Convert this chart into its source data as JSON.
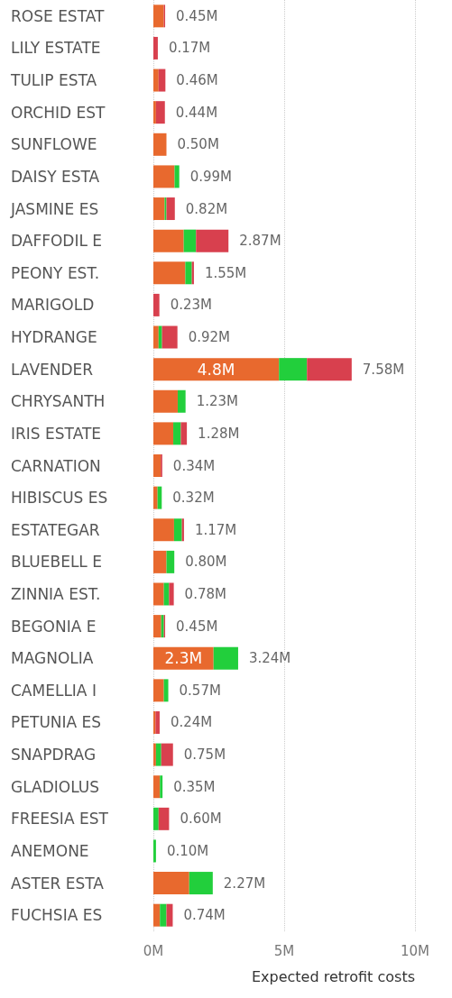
{
  "chart_data": {
    "type": "bar",
    "orientation": "horizontal",
    "stacked": true,
    "xlabel": "Expected retrofit costs",
    "categories": [
      "ROSE ESTAT",
      "LILY ESTATE",
      "TULIP ESTA",
      "ORCHID EST",
      "SUNFLOWE",
      "DAISY ESTA",
      "JASMINE ES",
      "DAFFODIL E",
      "PEONY EST.",
      "MARIGOLD",
      "HYDRANGE",
      "LAVENDER",
      "CHRYSANTH",
      "IRIS ESTATE",
      "CARNATION",
      "HIBISCUS ES",
      "ESTATEGAR",
      "BLUEBELL E",
      "ZINNIA EST.",
      "BEGONIA E",
      "MAGNOLIA",
      "CAMELLIA I",
      "PETUNIA ES",
      "SNAPDRAG",
      "GLADIOLUS",
      "FREESIA EST",
      "ANEMONE",
      "ASTER ESTA",
      "FUCHSIA ES"
    ],
    "series": [
      {
        "color": "#e8692e",
        "values": [
          0.4,
          null,
          0.2,
          0.1,
          0.5,
          0.81,
          0.43,
          1.16,
          1.22,
          null,
          0.2,
          4.8,
          0.93,
          0.76,
          0.28,
          0.16,
          0.79,
          0.5,
          0.4,
          0.3,
          2.3,
          0.4,
          0.08,
          0.1,
          0.25,
          null,
          null,
          1.37,
          0.25
        ],
        "value_labels": [
          null,
          null,
          null,
          null,
          null,
          null,
          null,
          null,
          null,
          null,
          null,
          "4.8M",
          null,
          null,
          null,
          null,
          null,
          null,
          null,
          null,
          "2.3M",
          null,
          null,
          null,
          null,
          null,
          null,
          null,
          null
        ]
      },
      {
        "color": "#22cf3c",
        "values": [
          null,
          null,
          null,
          null,
          null,
          0.18,
          0.07,
          0.47,
          0.25,
          null,
          0.13,
          1.07,
          0.3,
          0.29,
          null,
          0.16,
          0.3,
          0.3,
          0.2,
          0.1,
          0.94,
          0.17,
          null,
          0.2,
          0.1,
          0.2,
          0.1,
          0.9,
          0.25
        ]
      },
      {
        "color": "#d8404e",
        "values": [
          0.05,
          0.17,
          0.26,
          0.34,
          null,
          null,
          0.32,
          1.24,
          0.08,
          0.23,
          0.59,
          1.71,
          null,
          0.23,
          0.06,
          null,
          0.08,
          null,
          0.18,
          0.05,
          null,
          null,
          0.16,
          0.45,
          null,
          0.4,
          null,
          null,
          0.24
        ]
      }
    ],
    "totals": [
      "0.45M",
      "0.17M",
      "0.46M",
      "0.44M",
      "0.50M",
      "0.99M",
      "0.82M",
      "2.87M",
      "1.55M",
      "0.23M",
      "0.92M",
      "7.58M",
      "1.23M",
      "1.28M",
      "0.34M",
      "0.32M",
      "1.17M",
      "0.80M",
      "0.78M",
      "0.45M",
      "3.24M",
      "0.57M",
      "0.24M",
      "0.75M",
      "0.35M",
      "0.60M",
      "0.10M",
      "2.27M",
      "0.74M"
    ],
    "xlim": [
      0,
      10
    ],
    "xticks": [
      {
        "value": 0,
        "label": "0M"
      },
      {
        "value": 5,
        "label": "5M"
      },
      {
        "value": 10,
        "label": "10M"
      }
    ],
    "grid": "x"
  }
}
